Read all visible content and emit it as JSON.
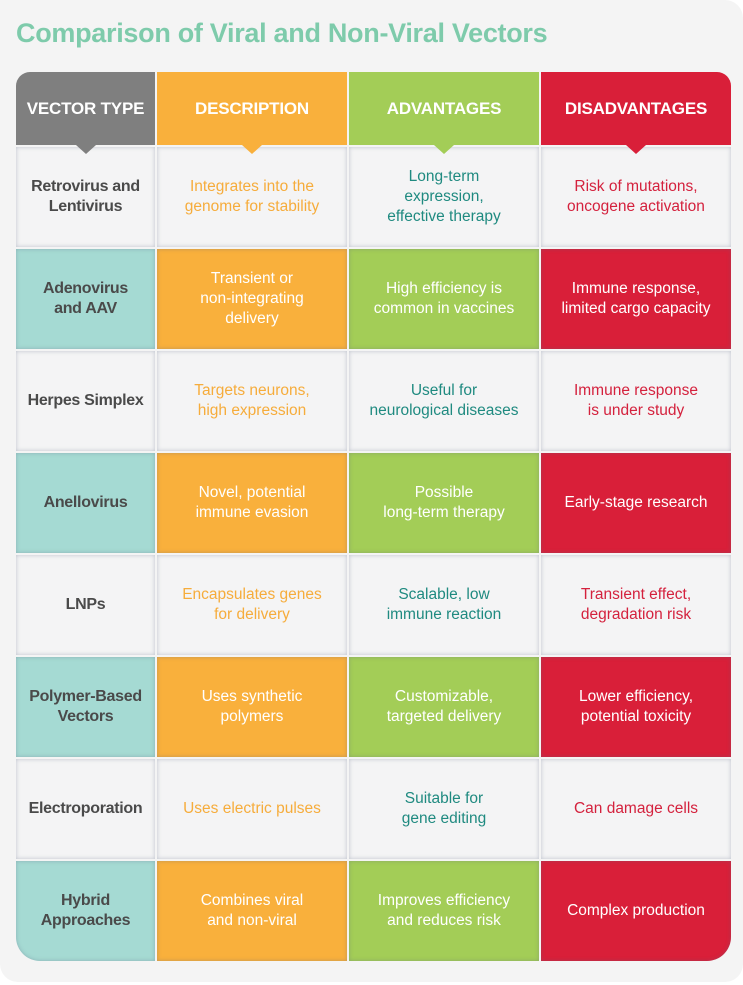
{
  "title": "Comparison of Viral and Non-Viral Vectors",
  "colors": {
    "title": "#7ecbab",
    "vector_type_header": "#7f7f7f",
    "description": "#f9b03c",
    "advantages": "#a3cd57",
    "disadvantages": "#d91f39",
    "vector_type_highlight": "#a5dad3",
    "advantages_text": "#1f8a80"
  },
  "headers": [
    "VECTOR TYPE",
    "DESCRIPTION",
    "ADVANTAGES",
    "DISADVANTAGES"
  ],
  "rows": [
    {
      "style": "light",
      "vector_type": [
        "Retrovirus and",
        "Lentivirus"
      ],
      "description": [
        "Integrates into the",
        "genome for stability"
      ],
      "advantages": [
        "Long-term",
        "expression,",
        "effective therapy"
      ],
      "disadvantages": [
        "Risk of mutations,",
        "oncogene activation"
      ]
    },
    {
      "style": "dark",
      "vector_type": [
        "Adenovirus",
        "and AAV"
      ],
      "description": [
        "Transient or",
        "non-integrating",
        "delivery"
      ],
      "advantages": [
        "High efficiency is",
        "common in vaccines"
      ],
      "disadvantages": [
        "Immune response,",
        "limited cargo capacity"
      ]
    },
    {
      "style": "light",
      "vector_type": [
        "Herpes Simplex"
      ],
      "description": [
        "Targets neurons,",
        "high expression"
      ],
      "advantages": [
        "Useful for",
        "neurological diseases"
      ],
      "disadvantages": [
        "Immune response",
        "is under study"
      ]
    },
    {
      "style": "dark",
      "vector_type": [
        "Anellovirus"
      ],
      "description": [
        "Novel, potential",
        "immune evasion"
      ],
      "advantages": [
        "Possible",
        "long-term therapy"
      ],
      "disadvantages": [
        "Early-stage research"
      ]
    },
    {
      "style": "light",
      "vector_type": [
        "LNPs"
      ],
      "description": [
        "Encapsulates genes",
        "for delivery"
      ],
      "advantages": [
        "Scalable, low",
        "immune reaction"
      ],
      "disadvantages": [
        "Transient effect,",
        "degradation risk"
      ]
    },
    {
      "style": "dark",
      "vector_type": [
        "Polymer-Based",
        "Vectors"
      ],
      "description": [
        "Uses synthetic",
        "polymers"
      ],
      "advantages": [
        "Customizable,",
        "targeted delivery"
      ],
      "disadvantages": [
        "Lower efficiency,",
        "potential toxicity"
      ]
    },
    {
      "style": "light",
      "vector_type": [
        "Electroporation"
      ],
      "description": [
        "Uses electric pulses"
      ],
      "advantages": [
        "Suitable for",
        "gene editing"
      ],
      "disadvantages": [
        "Can damage cells"
      ]
    },
    {
      "style": "dark",
      "vector_type": [
        "Hybrid",
        "Approaches"
      ],
      "description": [
        "Combines viral",
        "and non-viral"
      ],
      "advantages": [
        "Improves efficiency",
        "and reduces risk"
      ],
      "disadvantages": [
        "Complex production"
      ]
    }
  ]
}
